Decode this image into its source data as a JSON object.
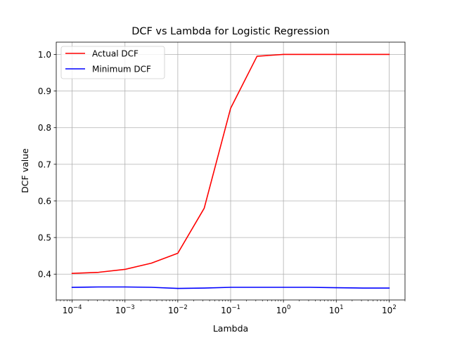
{
  "chart_data": {
    "type": "line",
    "title": "DCF vs Lambda for Logistic Regression",
    "xlabel": "Lambda",
    "ylabel": "DCF value",
    "xscale": "log",
    "xlim": [
      5e-05,
      200
    ],
    "ylim": [
      0.3295,
      1.0335
    ],
    "grid": true,
    "legend_position": "top-left",
    "x": [
      0.0001,
      0.000316,
      0.001,
      0.00316,
      0.01,
      0.0316,
      0.1,
      0.316,
      1,
      3.16,
      10,
      31.6,
      100
    ],
    "x_ticks": [
      {
        "value": 0.0001,
        "base": "10",
        "exp": "−4"
      },
      {
        "value": 0.001,
        "base": "10",
        "exp": "−3"
      },
      {
        "value": 0.01,
        "base": "10",
        "exp": "−2"
      },
      {
        "value": 0.1,
        "base": "10",
        "exp": "−1"
      },
      {
        "value": 1,
        "base": "10",
        "exp": "0"
      },
      {
        "value": 10,
        "base": "10",
        "exp": "1"
      },
      {
        "value": 100,
        "base": "10",
        "exp": "2"
      }
    ],
    "y_ticks": [
      {
        "value": 0.4,
        "label": "0.4"
      },
      {
        "value": 0.5,
        "label": "0.5"
      },
      {
        "value": 0.6,
        "label": "0.6"
      },
      {
        "value": 0.7,
        "label": "0.7"
      },
      {
        "value": 0.8,
        "label": "0.8"
      },
      {
        "value": 0.9,
        "label": "0.9"
      },
      {
        "value": 1.0,
        "label": "1.0"
      }
    ],
    "series": [
      {
        "name": "Actual DCF",
        "color": "#ff0000",
        "values": [
          0.402,
          0.405,
          0.413,
          0.43,
          0.457,
          0.58,
          0.853,
          0.995,
          1.0,
          1.0,
          1.0,
          1.0,
          1.0
        ]
      },
      {
        "name": "Minimum DCF",
        "color": "#0000ff",
        "values": [
          0.364,
          0.365,
          0.365,
          0.364,
          0.361,
          0.362,
          0.364,
          0.364,
          0.364,
          0.364,
          0.363,
          0.362,
          0.362
        ]
      }
    ]
  }
}
